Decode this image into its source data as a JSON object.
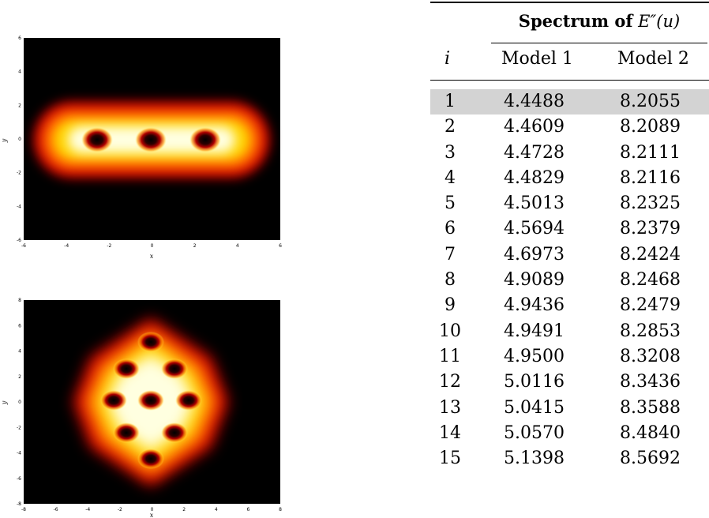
{
  "plot_top": {
    "x_label": "x",
    "y_label": "y",
    "x_ticks": [
      "-6",
      "-4",
      "-2",
      "0",
      "2",
      "4",
      "6"
    ],
    "y_ticks": [
      "6",
      "4",
      "2",
      "0",
      "-2",
      "-4",
      "-6"
    ]
  },
  "plot_bottom": {
    "x_label": "x",
    "y_label": "y",
    "x_ticks": [
      "-8",
      "-6",
      "-4",
      "-2",
      "0",
      "2",
      "4",
      "6",
      "8"
    ],
    "y_ticks": [
      "8",
      "6",
      "4",
      "2",
      "0",
      "-2",
      "-4",
      "-6",
      "-8"
    ]
  },
  "table": {
    "group_title": "Spectrum of",
    "group_math": "E″(u)",
    "col_i": "i",
    "col_model1": "Model 1",
    "col_model2": "Model 2",
    "highlight_color": "#d3d3d3",
    "rows": [
      {
        "i": "1",
        "m1": "4.4488",
        "m2": "8.2055"
      },
      {
        "i": "2",
        "m1": "4.4609",
        "m2": "8.2089"
      },
      {
        "i": "3",
        "m1": "4.4728",
        "m2": "8.2111"
      },
      {
        "i": "4",
        "m1": "4.4829",
        "m2": "8.2116"
      },
      {
        "i": "5",
        "m1": "4.5013",
        "m2": "8.2325"
      },
      {
        "i": "6",
        "m1": "4.5694",
        "m2": "8.2379"
      },
      {
        "i": "7",
        "m1": "4.6973",
        "m2": "8.2424"
      },
      {
        "i": "8",
        "m1": "4.9089",
        "m2": "8.2468"
      },
      {
        "i": "9",
        "m1": "4.9436",
        "m2": "8.2479"
      },
      {
        "i": "10",
        "m1": "4.9491",
        "m2": "8.2853"
      },
      {
        "i": "11",
        "m1": "4.9500",
        "m2": "8.3208"
      },
      {
        "i": "12",
        "m1": "5.0116",
        "m2": "8.3436"
      },
      {
        "i": "13",
        "m1": "5.0415",
        "m2": "8.3588"
      },
      {
        "i": "14",
        "m1": "5.0570",
        "m2": "8.4840"
      },
      {
        "i": "15",
        "m1": "5.1398",
        "m2": "8.5692"
      }
    ]
  }
}
